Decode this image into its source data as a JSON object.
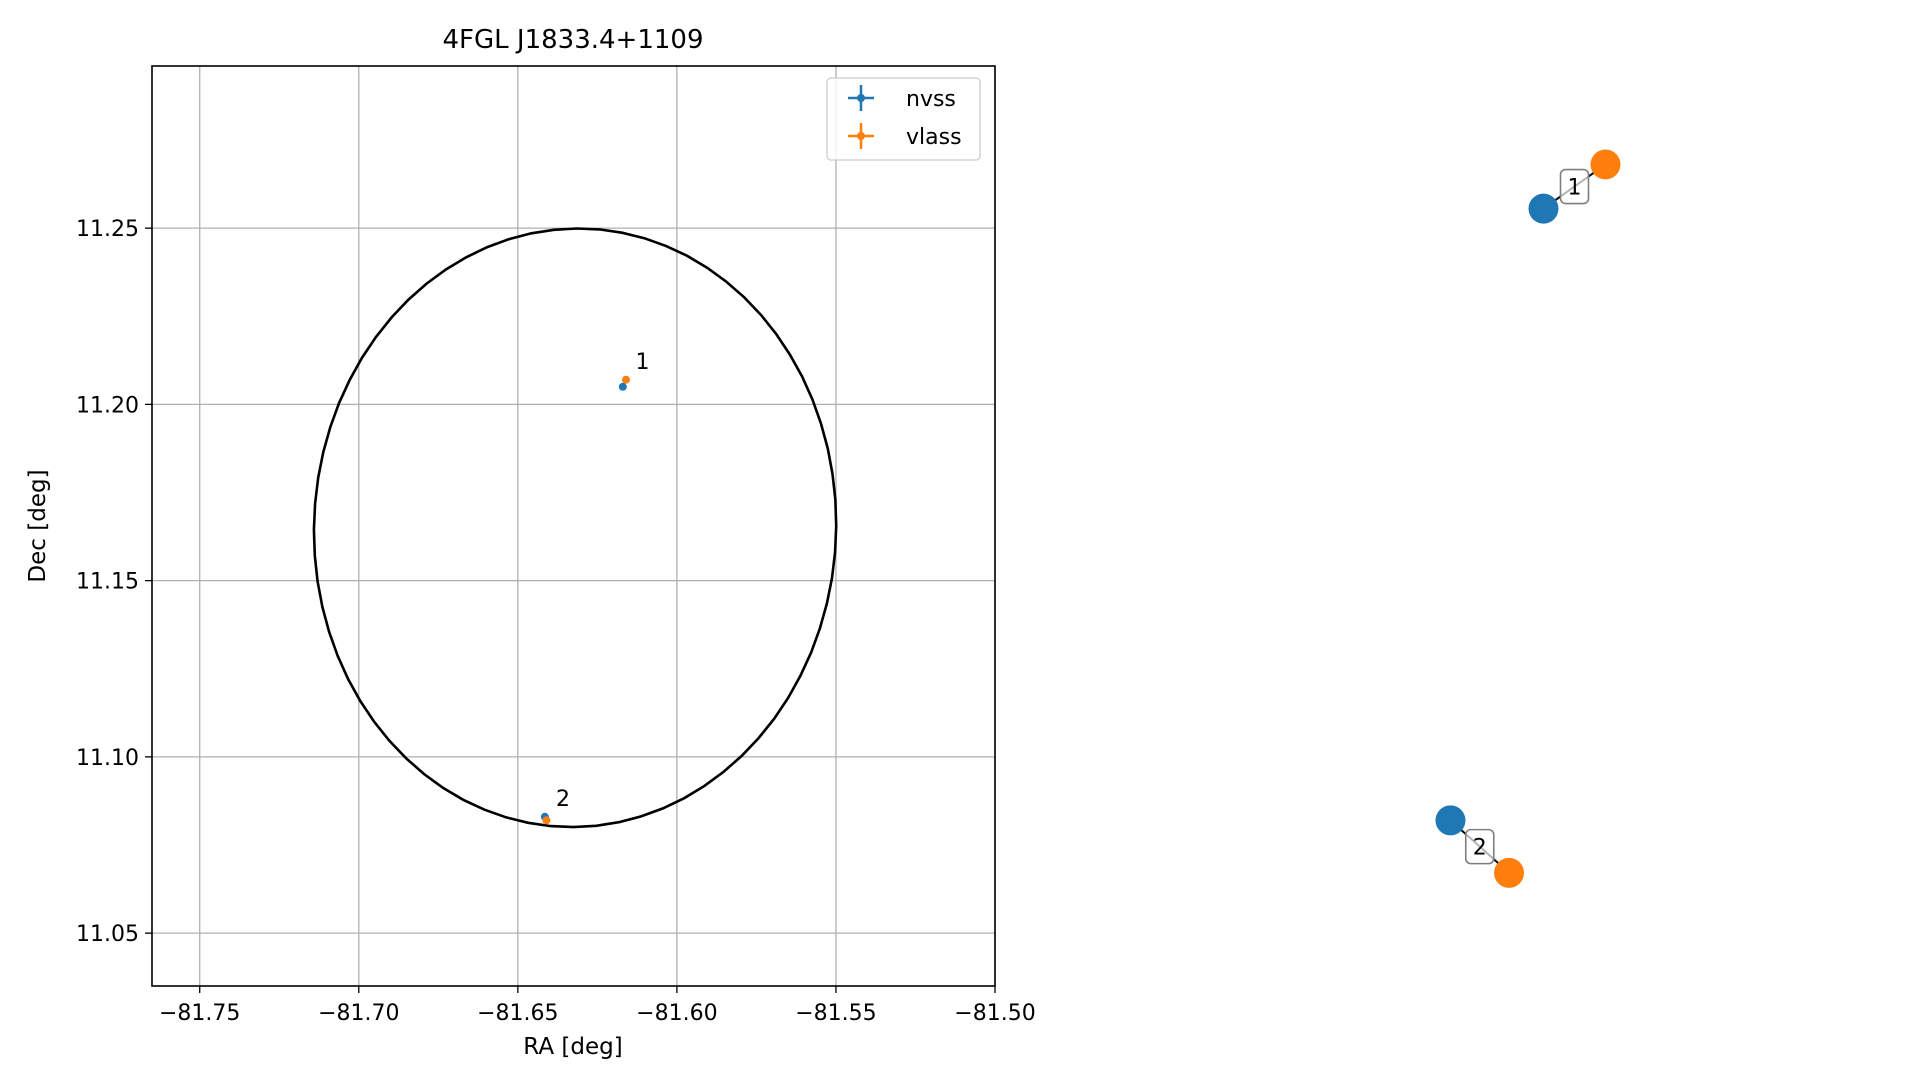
{
  "colors": {
    "nvss": "#1f77b4",
    "vlass": "#ff7f0e",
    "ellipse": "#000000",
    "grid": "#b0b0b0",
    "label_box_edge": "#7f7f7f"
  },
  "chart_data": [
    {
      "type": "scatter",
      "title": "4FGL J1833.4+1109",
      "xlabel": "RA [deg]",
      "ylabel": "Dec [deg]",
      "xlim": [
        -81.765,
        -81.5
      ],
      "ylim": [
        11.035,
        11.296
      ],
      "xticks": [
        -81.75,
        -81.7,
        -81.65,
        -81.6,
        -81.55,
        -81.5
      ],
      "xtick_labels": [
        "−81.75",
        "−81.70",
        "−81.65",
        "−81.60",
        "−81.55",
        "−81.50"
      ],
      "yticks": [
        11.05,
        11.1,
        11.15,
        11.2,
        11.25
      ],
      "ytick_labels": [
        "11.05",
        "11.10",
        "11.15",
        "11.20",
        "11.25"
      ],
      "grid": true,
      "legend": {
        "placement": "top-right",
        "entries": [
          "nvss",
          "vlass"
        ]
      },
      "series": [
        {
          "name": "nvss",
          "color": "#1f77b4",
          "points": [
            [
              -81.617,
              11.205
            ],
            [
              -81.6415,
              11.083
            ]
          ]
        },
        {
          "name": "vlass",
          "color": "#ff7f0e",
          "points": [
            [
              -81.616,
              11.207
            ],
            [
              -81.641,
              11.082
            ]
          ]
        }
      ],
      "ellipse": {
        "center": [
          -81.632,
          11.165
        ],
        "semi_axis_ra": 0.082,
        "semi_axis_dec": 0.085,
        "angle_deg": -10
      },
      "annotations": [
        {
          "text": "1",
          "x": -81.613,
          "y": 11.21
        },
        {
          "text": "2",
          "x": -81.638,
          "y": 11.086
        }
      ]
    },
    {
      "type": "scatter",
      "title": "",
      "axes_visible": false,
      "pairs": [
        {
          "label": "1",
          "nvss": [
            0.455,
            0.845
          ],
          "vlass": [
            0.545,
            0.893
          ]
        },
        {
          "label": "2",
          "nvss": [
            0.32,
            0.18
          ],
          "vlass": [
            0.405,
            0.123
          ]
        }
      ]
    }
  ]
}
